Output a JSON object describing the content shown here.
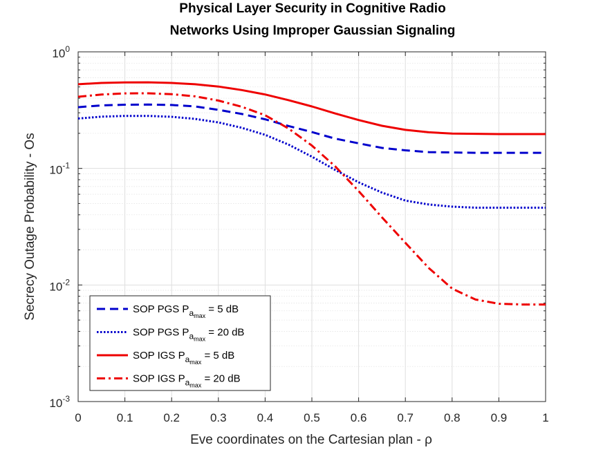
{
  "chart_data": {
    "type": "line",
    "title_lines": [
      "Physical Layer Security in Cognitive Radio",
      "Networks Using Improper Gaussian Signaling"
    ],
    "xlabel": "Eve coordinates on the Cartesian plan - ρ",
    "ylabel": "Secrecy Outage Probability - Os",
    "xlim": [
      0,
      1
    ],
    "ylim": [
      0.001,
      1
    ],
    "yscale": "log",
    "grid": true,
    "legend_position": "bottom-left",
    "x_ticks": [
      "0",
      "0.1",
      "0.2",
      "0.3",
      "0.4",
      "0.5",
      "0.6",
      "0.7",
      "0.8",
      "0.9",
      "1"
    ],
    "y_ticks": [
      {
        "base": "10",
        "exp": "-3"
      },
      {
        "base": "10",
        "exp": "-2"
      },
      {
        "base": "10",
        "exp": "-1"
      },
      {
        "base": "10",
        "exp": "0"
      }
    ],
    "x": [
      0,
      0.05,
      0.1,
      0.15,
      0.2,
      0.25,
      0.3,
      0.35,
      0.4,
      0.45,
      0.5,
      0.55,
      0.6,
      0.65,
      0.7,
      0.75,
      0.8,
      0.85,
      0.9,
      0.95,
      1.0
    ],
    "series": [
      {
        "name": "SOP PGS",
        "power": "5 dB",
        "color": "#0000cc",
        "dash": "dashed",
        "values": [
          0.335,
          0.347,
          0.352,
          0.353,
          0.35,
          0.34,
          0.318,
          0.293,
          0.264,
          0.231,
          0.205,
          0.18,
          0.164,
          0.15,
          0.143,
          0.138,
          0.137,
          0.136,
          0.136,
          0.136,
          0.136
        ]
      },
      {
        "name": "SOP PGS",
        "power": "20 dB",
        "color": "#0000cc",
        "dash": "dotted",
        "values": [
          0.268,
          0.278,
          0.282,
          0.282,
          0.277,
          0.266,
          0.248,
          0.223,
          0.194,
          0.16,
          0.126,
          0.097,
          0.076,
          0.062,
          0.053,
          0.049,
          0.047,
          0.046,
          0.046,
          0.046,
          0.046
        ]
      },
      {
        "name": "SOP IGS",
        "power": "5 dB",
        "color": "#ee0000",
        "dash": "solid",
        "values": [
          0.527,
          0.541,
          0.547,
          0.548,
          0.541,
          0.527,
          0.504,
          0.47,
          0.431,
          0.385,
          0.34,
          0.296,
          0.26,
          0.232,
          0.214,
          0.204,
          0.199,
          0.198,
          0.197,
          0.197,
          0.197
        ]
      },
      {
        "name": "SOP IGS",
        "power": "20 dB",
        "color": "#ee0000",
        "dash": "dashdot",
        "values": [
          0.412,
          0.43,
          0.44,
          0.441,
          0.433,
          0.415,
          0.382,
          0.338,
          0.286,
          0.22,
          0.157,
          0.104,
          0.064,
          0.038,
          0.023,
          0.014,
          0.0093,
          0.0075,
          0.0069,
          0.0068,
          0.0068
        ]
      }
    ],
    "legend": {
      "entries": [
        {
          "prefix": "SOP PGS P",
          "sub": "a",
          "subsub": "max",
          "suffix": " = 5 dB"
        },
        {
          "prefix": "SOP PGS P",
          "sub": "a",
          "subsub": "max",
          "suffix": " = 20 dB"
        },
        {
          "prefix": "SOP IGS P",
          "sub": "a",
          "subsub": "max",
          "suffix": " = 5 dB"
        },
        {
          "prefix": "SOP IGS P",
          "sub": "a",
          "subsub": "max",
          "suffix": " = 20 dB"
        }
      ]
    }
  }
}
